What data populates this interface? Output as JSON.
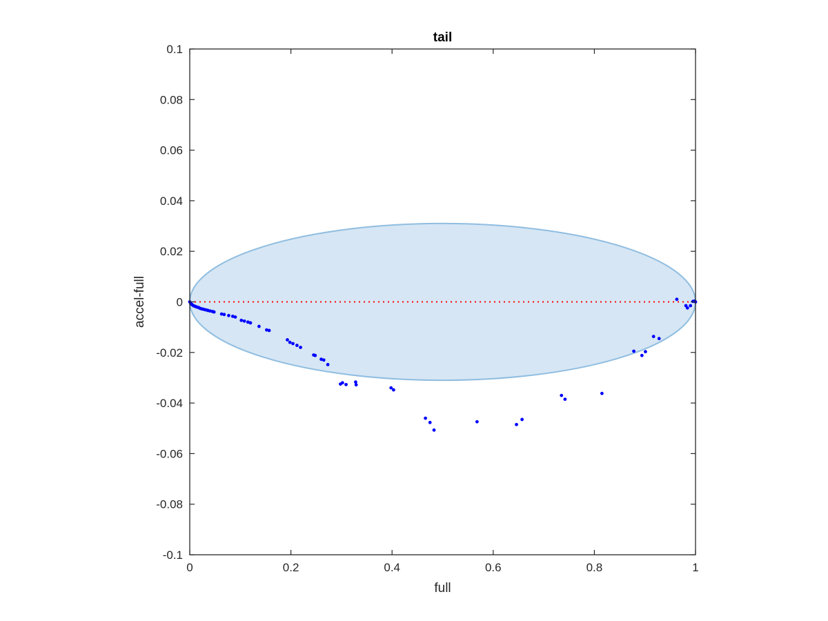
{
  "chart_data": {
    "type": "scatter",
    "title": "tail",
    "xlabel": "full",
    "ylabel": "accel-full",
    "xlim": [
      0,
      1
    ],
    "ylim": [
      -0.1,
      0.1
    ],
    "xticks": [
      0,
      0.2,
      0.4,
      0.6,
      0.8,
      1
    ],
    "xtick_labels": [
      "0",
      "0.2",
      "0.4",
      "0.6",
      "0.8",
      "1"
    ],
    "yticks": [
      -0.1,
      -0.08,
      -0.06,
      -0.04,
      -0.02,
      0,
      0.02,
      0.04,
      0.06,
      0.08,
      0.1
    ],
    "ytick_labels": [
      "-0.1",
      "-0.08",
      "-0.06",
      "-0.04",
      "-0.02",
      "0",
      "0.02",
      "0.04",
      "0.06",
      "0.08",
      "0.1"
    ],
    "grid": false,
    "ellipse": {
      "cx": 0.5,
      "cy": 0,
      "rx": 0.5,
      "ry": 0.031,
      "fill": "#d6e6f4",
      "stroke": "#8fbde0"
    },
    "zero_line": {
      "y": 0,
      "color": "#ff0000",
      "style": "dotted"
    },
    "point_color": "#0000ff",
    "points": [
      [
        0.0,
        0.0
      ],
      [
        0.002,
        -0.0006
      ],
      [
        0.004,
        -0.001
      ],
      [
        0.006,
        -0.0013
      ],
      [
        0.008,
        -0.0016
      ],
      [
        0.01,
        -0.0017
      ],
      [
        0.012,
        -0.0019
      ],
      [
        0.015,
        -0.0021
      ],
      [
        0.018,
        -0.0023
      ],
      [
        0.021,
        -0.0026
      ],
      [
        0.024,
        -0.0028
      ],
      [
        0.027,
        -0.0029
      ],
      [
        0.03,
        -0.0031
      ],
      [
        0.033,
        -0.0032
      ],
      [
        0.036,
        -0.0034
      ],
      [
        0.04,
        -0.0036
      ],
      [
        0.045,
        -0.0038
      ],
      [
        0.048,
        -0.004
      ],
      [
        0.063,
        -0.0048
      ],
      [
        0.068,
        -0.005
      ],
      [
        0.077,
        -0.0054
      ],
      [
        0.085,
        -0.0057
      ],
      [
        0.09,
        -0.006
      ],
      [
        0.102,
        -0.0073
      ],
      [
        0.108,
        -0.0076
      ],
      [
        0.115,
        -0.008
      ],
      [
        0.12,
        -0.0083
      ],
      [
        0.137,
        -0.0097
      ],
      [
        0.152,
        -0.0111
      ],
      [
        0.157,
        -0.0113
      ],
      [
        0.193,
        -0.015
      ],
      [
        0.198,
        -0.016
      ],
      [
        0.204,
        -0.0165
      ],
      [
        0.212,
        -0.0172
      ],
      [
        0.219,
        -0.018
      ],
      [
        0.245,
        -0.021
      ],
      [
        0.248,
        -0.0212
      ],
      [
        0.26,
        -0.0227
      ],
      [
        0.265,
        -0.023
      ],
      [
        0.273,
        -0.0248
      ],
      [
        0.298,
        -0.0325
      ],
      [
        0.302,
        -0.032
      ],
      [
        0.309,
        -0.0327
      ],
      [
        0.328,
        -0.0317
      ],
      [
        0.329,
        -0.0328
      ],
      [
        0.398,
        -0.034
      ],
      [
        0.403,
        -0.0348
      ],
      [
        0.466,
        -0.046
      ],
      [
        0.475,
        -0.0477
      ],
      [
        0.483,
        -0.0507
      ],
      [
        0.568,
        -0.0474
      ],
      [
        0.646,
        -0.0485
      ],
      [
        0.657,
        -0.0465
      ],
      [
        0.735,
        -0.037
      ],
      [
        0.742,
        -0.0385
      ],
      [
        0.815,
        -0.0362
      ],
      [
        0.878,
        -0.0195
      ],
      [
        0.894,
        -0.0212
      ],
      [
        0.901,
        -0.0197
      ],
      [
        0.917,
        -0.0137
      ],
      [
        0.928,
        -0.0145
      ],
      [
        0.963,
        0.001
      ],
      [
        0.981,
        -0.0015
      ],
      [
        0.984,
        -0.0024
      ],
      [
        0.99,
        -0.0015
      ],
      [
        0.995,
        0.0002
      ],
      [
        0.998,
        0.0003
      ],
      [
        1.0,
        0.0
      ]
    ]
  }
}
